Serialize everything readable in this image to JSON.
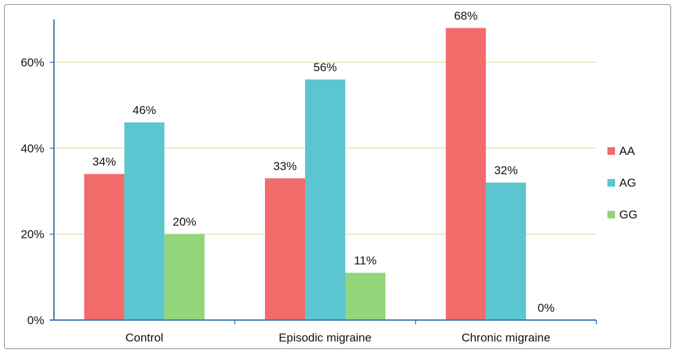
{
  "chart_data": {
    "type": "bar",
    "categories": [
      "Control",
      "Episodic migraine",
      "Chronic migraine"
    ],
    "series": [
      {
        "name": "AA",
        "values": [
          34,
          33,
          68
        ],
        "labels": [
          "34%",
          "33%",
          "68%"
        ],
        "color": "#f26b6b"
      },
      {
        "name": "AG",
        "values": [
          46,
          56,
          32
        ],
        "labels": [
          "46%",
          "56%",
          "32%"
        ],
        "color": "#5bc6d0"
      },
      {
        "name": "GG",
        "values": [
          20,
          11,
          0
        ],
        "labels": [
          "20%",
          "11%",
          "0%"
        ],
        "color": "#93d57a"
      }
    ],
    "yticks": [
      {
        "value": 0,
        "label": "0%"
      },
      {
        "value": 20,
        "label": "20%"
      },
      {
        "value": 40,
        "label": "40%"
      },
      {
        "value": 60,
        "label": "60%"
      }
    ],
    "ylim": [
      0,
      70
    ],
    "grid": true,
    "gridColor": "#e8e0b8",
    "axisColor": "#3d7ab0",
    "legend_position": "right",
    "title": "",
    "xlabel": "",
    "ylabel": ""
  }
}
